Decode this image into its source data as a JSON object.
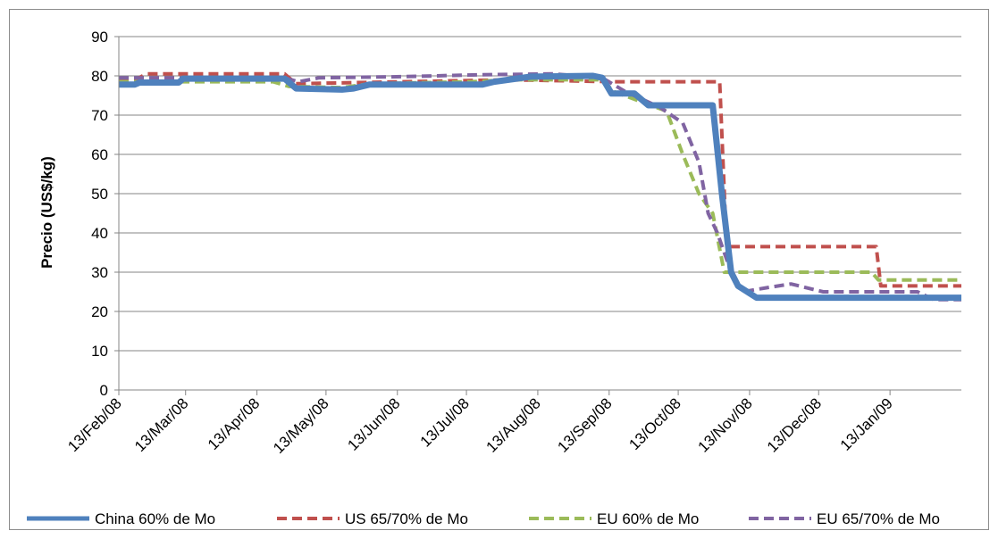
{
  "chart_data": {
    "type": "line",
    "title": "",
    "xlabel": "",
    "ylabel": "Precio (US$/kg)",
    "ylim": [
      0,
      90
    ],
    "yticks": [
      0,
      10,
      20,
      30,
      40,
      50,
      60,
      70,
      80,
      90
    ],
    "xlim": [
      "2008-02-13",
      "2009-02-13"
    ],
    "xticks": [
      {
        "date": "2008-02-13",
        "label": "13/Feb/08"
      },
      {
        "date": "2008-03-13",
        "label": "13/Mar/08"
      },
      {
        "date": "2008-04-13",
        "label": "13/Apr/08"
      },
      {
        "date": "2008-05-13",
        "label": "13/May/08"
      },
      {
        "date": "2008-06-13",
        "label": "13/Jun/08"
      },
      {
        "date": "2008-07-13",
        "label": "13/Jul/08"
      },
      {
        "date": "2008-08-13",
        "label": "13/Aug/08"
      },
      {
        "date": "2008-09-13",
        "label": "13/Sep/08"
      },
      {
        "date": "2008-10-13",
        "label": "13/Oct/08"
      },
      {
        "date": "2008-11-13",
        "label": "13/Nov/08"
      },
      {
        "date": "2008-12-13",
        "label": "13/Dec/08"
      },
      {
        "date": "2009-01-13",
        "label": "13/Jan/09"
      }
    ],
    "grid": "horizontal",
    "legend_position": "bottom",
    "series": [
      {
        "name": "China 60% de Mo",
        "color": "#4f81bd",
        "style": "solid",
        "points": [
          [
            "2008-02-13",
            77.8
          ],
          [
            "2008-02-20",
            77.8
          ],
          [
            "2008-02-22",
            78.3
          ],
          [
            "2008-03-10",
            78.3
          ],
          [
            "2008-03-12",
            79.3
          ],
          [
            "2008-04-25",
            79.3
          ],
          [
            "2008-04-30",
            76.8
          ],
          [
            "2008-05-20",
            76.5
          ],
          [
            "2008-05-25",
            76.8
          ],
          [
            "2008-06-01",
            77.8
          ],
          [
            "2008-07-20",
            77.8
          ],
          [
            "2008-07-25",
            78.5
          ],
          [
            "2008-08-10",
            79.8
          ],
          [
            "2008-09-06",
            80.0
          ],
          [
            "2008-09-10",
            79.5
          ],
          [
            "2008-09-14",
            75.5
          ],
          [
            "2008-09-24",
            75.5
          ],
          [
            "2008-09-30",
            72.5
          ],
          [
            "2008-10-28",
            72.5
          ],
          [
            "2008-11-01",
            50.0
          ],
          [
            "2008-11-05",
            30.0
          ],
          [
            "2008-11-08",
            26.5
          ],
          [
            "2008-11-16",
            23.5
          ],
          [
            "2009-02-13",
            23.5
          ]
        ]
      },
      {
        "name": "US 65/70% de Mo",
        "color": "#c0504d",
        "style": "dashed",
        "points": [
          [
            "2008-02-13",
            79.0
          ],
          [
            "2008-02-20",
            79.0
          ],
          [
            "2008-02-25",
            80.5
          ],
          [
            "2008-04-25",
            80.5
          ],
          [
            "2008-04-30",
            78.0
          ],
          [
            "2008-06-15",
            78.5
          ],
          [
            "2008-08-01",
            79.0
          ],
          [
            "2008-09-15",
            78.5
          ],
          [
            "2008-10-31",
            78.5
          ],
          [
            "2008-11-03",
            36.5
          ],
          [
            "2009-01-07",
            36.5
          ],
          [
            "2009-01-09",
            26.5
          ],
          [
            "2009-02-13",
            26.5
          ]
        ]
      },
      {
        "name": "EU 60% de Mo",
        "color": "#9bbb59",
        "style": "dashed",
        "points": [
          [
            "2008-02-13",
            78.5
          ],
          [
            "2008-04-20",
            78.5
          ],
          [
            "2008-04-27",
            77.3
          ],
          [
            "2008-05-20",
            77.0
          ],
          [
            "2008-06-01",
            78.0
          ],
          [
            "2008-07-15",
            78.5
          ],
          [
            "2008-08-01",
            79.0
          ],
          [
            "2008-09-01",
            79.0
          ],
          [
            "2008-09-10",
            79.0
          ],
          [
            "2008-09-15",
            76.0
          ],
          [
            "2008-10-08",
            71.0
          ],
          [
            "2008-10-15",
            60.0
          ],
          [
            "2008-10-22",
            50.0
          ],
          [
            "2008-10-28",
            45.0
          ],
          [
            "2008-11-02",
            30.0
          ],
          [
            "2009-01-05",
            30.0
          ],
          [
            "2009-01-08",
            28.0
          ],
          [
            "2009-02-13",
            28.0
          ]
        ]
      },
      {
        "name": "EU 65/70% de Mo",
        "color": "#8064a2",
        "style": "dashed",
        "points": [
          [
            "2008-02-13",
            79.5
          ],
          [
            "2008-04-25",
            79.5
          ],
          [
            "2008-05-01",
            78.5
          ],
          [
            "2008-05-10",
            79.5
          ],
          [
            "2008-06-15",
            79.8
          ],
          [
            "2008-07-20",
            80.3
          ],
          [
            "2008-08-20",
            80.5
          ],
          [
            "2008-09-10",
            79.5
          ],
          [
            "2008-09-20",
            76.0
          ],
          [
            "2008-10-05",
            72.0
          ],
          [
            "2008-10-15",
            68.0
          ],
          [
            "2008-10-22",
            58.0
          ],
          [
            "2008-10-26",
            45.0
          ],
          [
            "2008-10-30",
            40.0
          ],
          [
            "2008-11-05",
            30.0
          ],
          [
            "2008-11-10",
            25.0
          ],
          [
            "2008-11-20",
            26.0
          ],
          [
            "2008-12-01",
            27.0
          ],
          [
            "2008-12-15",
            25.0
          ],
          [
            "2009-01-10",
            25.0
          ],
          [
            "2009-01-25",
            25.0
          ],
          [
            "2009-02-01",
            23.0
          ],
          [
            "2009-02-13",
            23.0
          ]
        ]
      }
    ]
  }
}
